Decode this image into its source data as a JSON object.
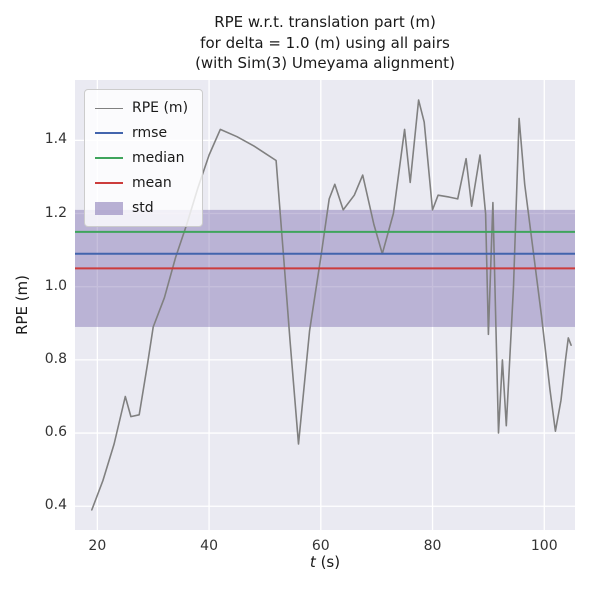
{
  "chart_data": {
    "type": "line",
    "title": "RPE w.r.t. translation part (m)\nfor delta = 1.0 (m) using all pairs\n(with Sim(3) Umeyama alignment)",
    "xlabel": "t (s)",
    "xlabel_var": "t",
    "xlabel_rest": " (s)",
    "ylabel": "RPE (m)",
    "xlim": [
      16,
      105.5
    ],
    "ylim": [
      0.335,
      1.565
    ],
    "xticks": [
      20,
      40,
      60,
      80,
      100
    ],
    "yticks": [
      0.4,
      0.6,
      0.8,
      1.0,
      1.2,
      1.4
    ],
    "grid": true,
    "legend_position": "upper left",
    "series": [
      {
        "name": "RPE (m)",
        "color": "#808080",
        "x": [
          19,
          21,
          23,
          25,
          26,
          27.5,
          29,
          30,
          32,
          34,
          36,
          38,
          40,
          42,
          45,
          48,
          50,
          52,
          53.5,
          54.5,
          56,
          58,
          60,
          61.5,
          62.5,
          64,
          66,
          67.5,
          69.5,
          71,
          73,
          75,
          76,
          77.5,
          78.5,
          80,
          81,
          83,
          84.5,
          86,
          87,
          88.5,
          89.5,
          90,
          90.8,
          91.8,
          92.5,
          93.2,
          94.5,
          95.5,
          96.5,
          98,
          99.5,
          101,
          102,
          103,
          103.8,
          104.3,
          104.8
        ],
        "y": [
          0.39,
          0.47,
          0.57,
          0.7,
          0.645,
          0.65,
          0.79,
          0.89,
          0.97,
          1.08,
          1.17,
          1.27,
          1.36,
          1.43,
          1.41,
          1.385,
          1.365,
          1.345,
          1.05,
          0.85,
          0.57,
          0.88,
          1.08,
          1.24,
          1.28,
          1.21,
          1.25,
          1.305,
          1.17,
          1.09,
          1.2,
          1.43,
          1.285,
          1.51,
          1.45,
          1.21,
          1.25,
          1.245,
          1.24,
          1.35,
          1.22,
          1.36,
          1.2,
          0.87,
          1.23,
          0.6,
          0.8,
          0.62,
          1.0,
          1.46,
          1.28,
          1.1,
          0.92,
          0.72,
          0.605,
          0.69,
          0.8,
          0.86,
          0.84
        ]
      }
    ],
    "stat_lines": [
      {
        "name": "rmse",
        "value": 1.09,
        "color": "#4264ad"
      },
      {
        "name": "median",
        "value": 1.15,
        "color": "#3fa45c"
      },
      {
        "name": "mean",
        "value": 1.05,
        "color": "#cc3c3c"
      }
    ],
    "std_band": {
      "name": "std",
      "low": 0.89,
      "high": 1.21,
      "color": "#8172b2",
      "alpha": 0.45
    },
    "colors": {
      "plot_bg": "#eaeaf2",
      "grid_line": "#ffffff",
      "line": "#808080",
      "text": "#1a1a1a",
      "tick_text": "#333333"
    }
  }
}
